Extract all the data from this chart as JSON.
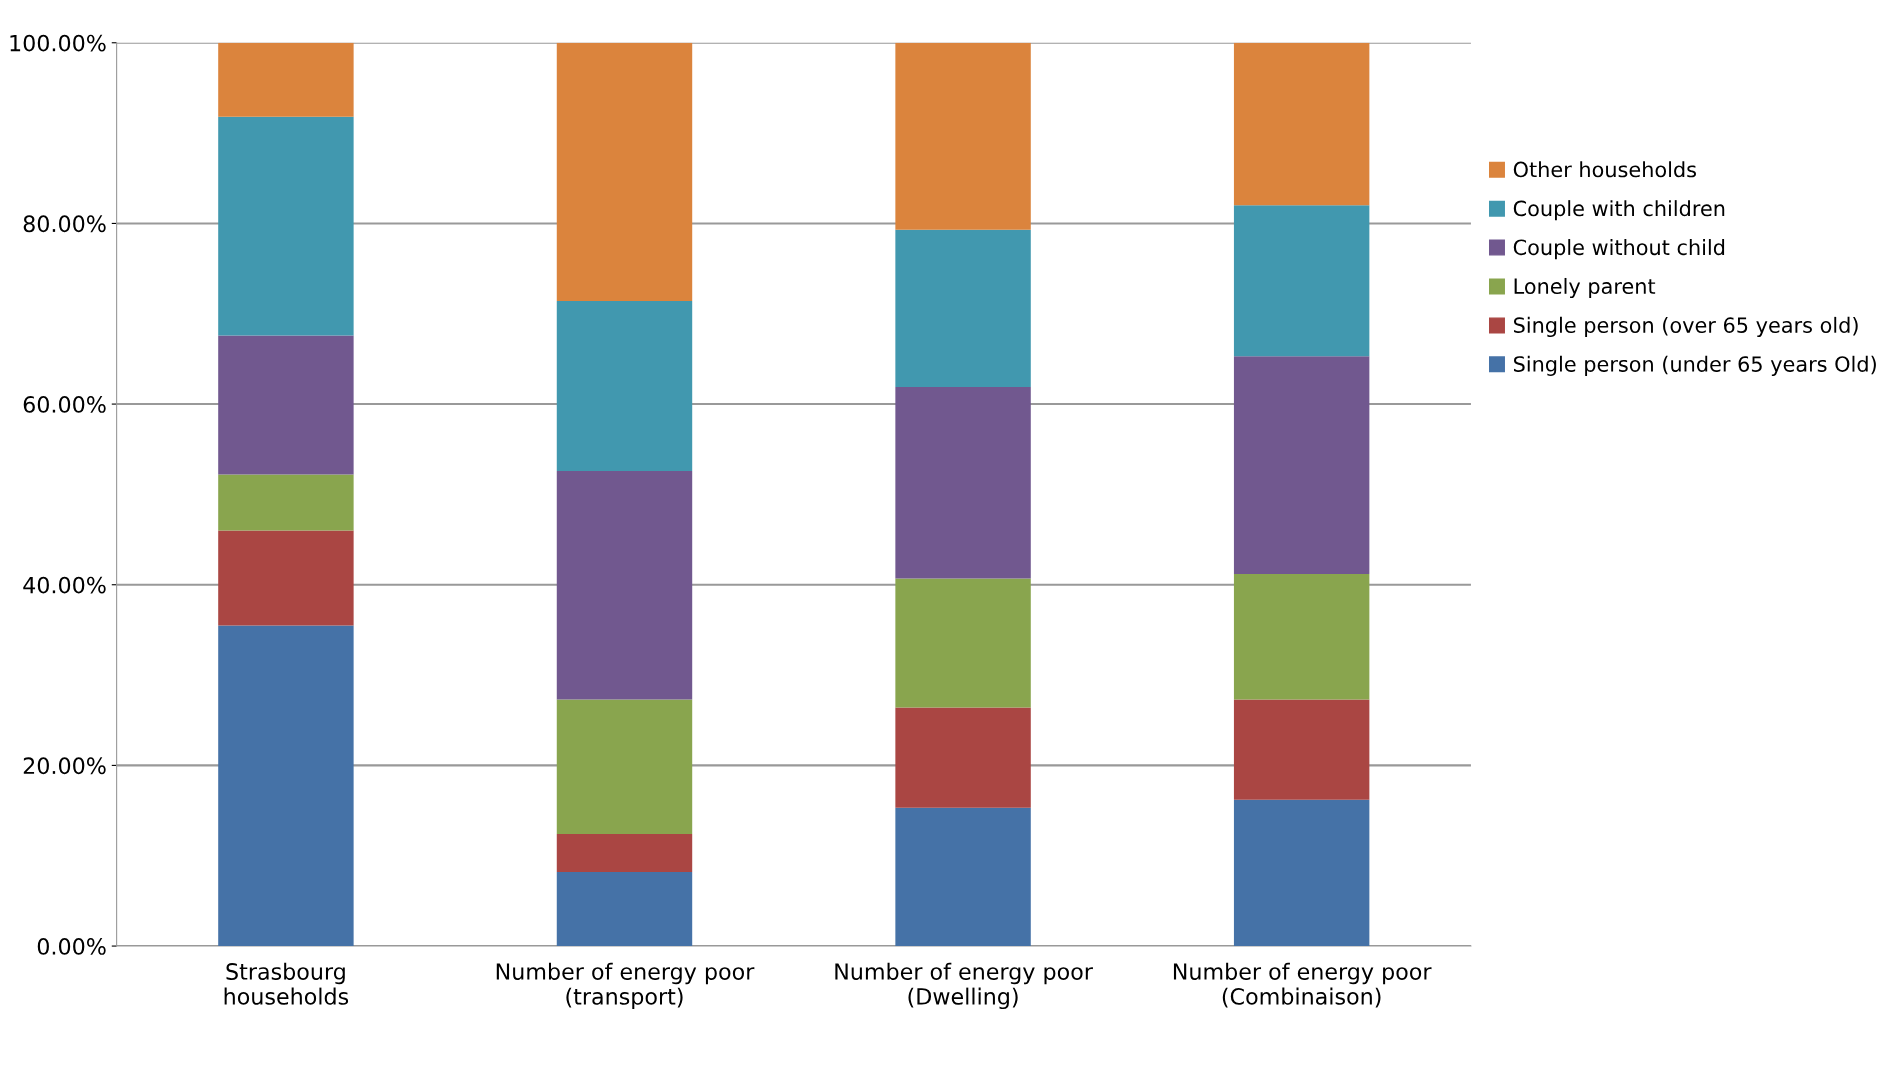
{
  "chart_data": {
    "type": "bar",
    "stacked": true,
    "categories": [
      "Strasbourg\nhouseholds",
      "Number of energy poor\n(transport)",
      "Number of energy poor\n(Dwelling)",
      "Number of energy poor\n(Combinaison)"
    ],
    "series": [
      {
        "name": "Single person (under 65 years Old)",
        "color": "#4572a7",
        "values": [
          35.5,
          8.2,
          15.3,
          16.2
        ]
      },
      {
        "name": "Single person (over 65 years old)",
        "color": "#aa4643",
        "values": [
          10.5,
          4.2,
          11.1,
          11.1
        ]
      },
      {
        "name": "Lonely parent",
        "color": "#89a54e",
        "values": [
          6.2,
          14.9,
          14.3,
          13.9
        ]
      },
      {
        "name": "Couple without child",
        "color": "#71588f",
        "values": [
          15.4,
          25.3,
          21.2,
          24.1
        ]
      },
      {
        "name": "Couple with children",
        "color": "#4198af",
        "values": [
          24.2,
          18.8,
          17.4,
          16.7
        ]
      },
      {
        "name": "Other households",
        "color": "#db843d",
        "values": [
          8.2,
          28.6,
          20.7,
          18.0
        ]
      }
    ],
    "ylim": [
      0,
      100
    ],
    "yticks": [
      {
        "value": 0,
        "label": "0.00%"
      },
      {
        "value": 20,
        "label": "20.00%"
      },
      {
        "value": 40,
        "label": "40.00%"
      },
      {
        "value": 60,
        "label": "60.00%"
      },
      {
        "value": 80,
        "label": "80.00%"
      },
      {
        "value": 100,
        "label": "100.00%"
      }
    ],
    "grid": "y",
    "legend": "right"
  }
}
